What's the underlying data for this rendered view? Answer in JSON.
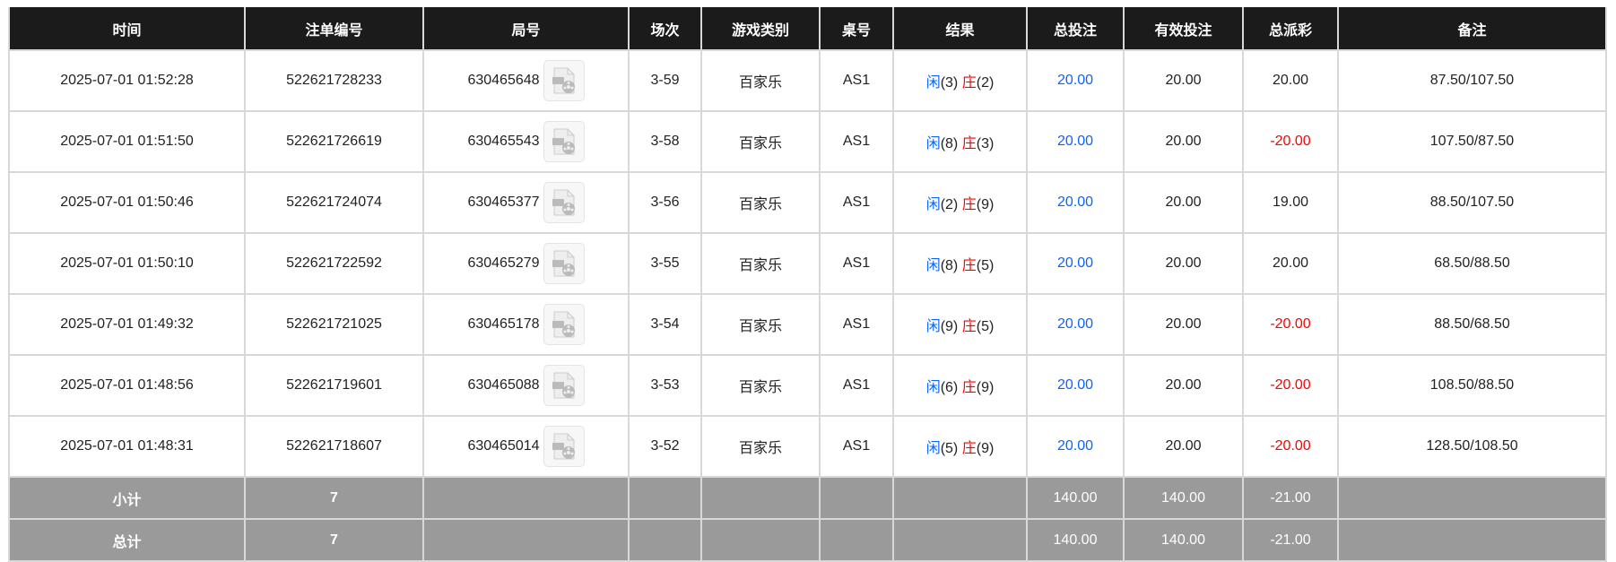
{
  "headers": [
    "时间",
    "注单编号",
    "局号",
    "场次",
    "游戏类别",
    "桌号",
    "结果",
    "总投注",
    "有效投注",
    "总派彩",
    "备注"
  ],
  "colors": {
    "header_bg": "#1b1b1b",
    "footer_bg": "#9a9a9a",
    "player": "#0a64ff",
    "negative": "#ff0000"
  },
  "result_labels": {
    "player": "闲",
    "banker": "庄"
  },
  "rows": [
    {
      "time": "2025-07-01 01:52:28",
      "bet_id": "522621728233",
      "round": "630465648",
      "shoe": "3-59",
      "game": "百家乐",
      "table": "AS1",
      "player": "(3)",
      "banker": "(2)",
      "total_bet": "20.00",
      "valid_bet": "20.00",
      "payout": "20.00",
      "payout_negative": false,
      "note": "87.50/107.50"
    },
    {
      "time": "2025-07-01 01:51:50",
      "bet_id": "522621726619",
      "round": "630465543",
      "shoe": "3-58",
      "game": "百家乐",
      "table": "AS1",
      "player": "(8)",
      "banker": "(3)",
      "total_bet": "20.00",
      "valid_bet": "20.00",
      "payout": "-20.00",
      "payout_negative": true,
      "note": "107.50/87.50"
    },
    {
      "time": "2025-07-01 01:50:46",
      "bet_id": "522621724074",
      "round": "630465377",
      "shoe": "3-56",
      "game": "百家乐",
      "table": "AS1",
      "player": "(2)",
      "banker": "(9)",
      "total_bet": "20.00",
      "valid_bet": "20.00",
      "payout": "19.00",
      "payout_negative": false,
      "note": "88.50/107.50"
    },
    {
      "time": "2025-07-01 01:50:10",
      "bet_id": "522621722592",
      "round": "630465279",
      "shoe": "3-55",
      "game": "百家乐",
      "table": "AS1",
      "player": "(8)",
      "banker": "(5)",
      "total_bet": "20.00",
      "valid_bet": "20.00",
      "payout": "20.00",
      "payout_negative": false,
      "note": "68.50/88.50"
    },
    {
      "time": "2025-07-01 01:49:32",
      "bet_id": "522621721025",
      "round": "630465178",
      "shoe": "3-54",
      "game": "百家乐",
      "table": "AS1",
      "player": "(9)",
      "banker": "(5)",
      "total_bet": "20.00",
      "valid_bet": "20.00",
      "payout": "-20.00",
      "payout_negative": true,
      "note": "88.50/68.50"
    },
    {
      "time": "2025-07-01 01:48:56",
      "bet_id": "522621719601",
      "round": "630465088",
      "shoe": "3-53",
      "game": "百家乐",
      "table": "AS1",
      "player": "(6)",
      "banker": "(9)",
      "total_bet": "20.00",
      "valid_bet": "20.00",
      "payout": "-20.00",
      "payout_negative": true,
      "note": "108.50/88.50"
    },
    {
      "time": "2025-07-01 01:48:31",
      "bet_id": "522621718607",
      "round": "630465014",
      "shoe": "3-52",
      "game": "百家乐",
      "table": "AS1",
      "player": "(5)",
      "banker": "(9)",
      "total_bet": "20.00",
      "valid_bet": "20.00",
      "payout": "-20.00",
      "payout_negative": true,
      "note": "128.50/108.50"
    }
  ],
  "footer": [
    {
      "label": "小计",
      "count": "7",
      "total_bet": "140.00",
      "valid_bet": "140.00",
      "payout": "-21.00"
    },
    {
      "label": "总计",
      "count": "7",
      "total_bet": "140.00",
      "valid_bet": "140.00",
      "payout": "-21.00"
    }
  ]
}
